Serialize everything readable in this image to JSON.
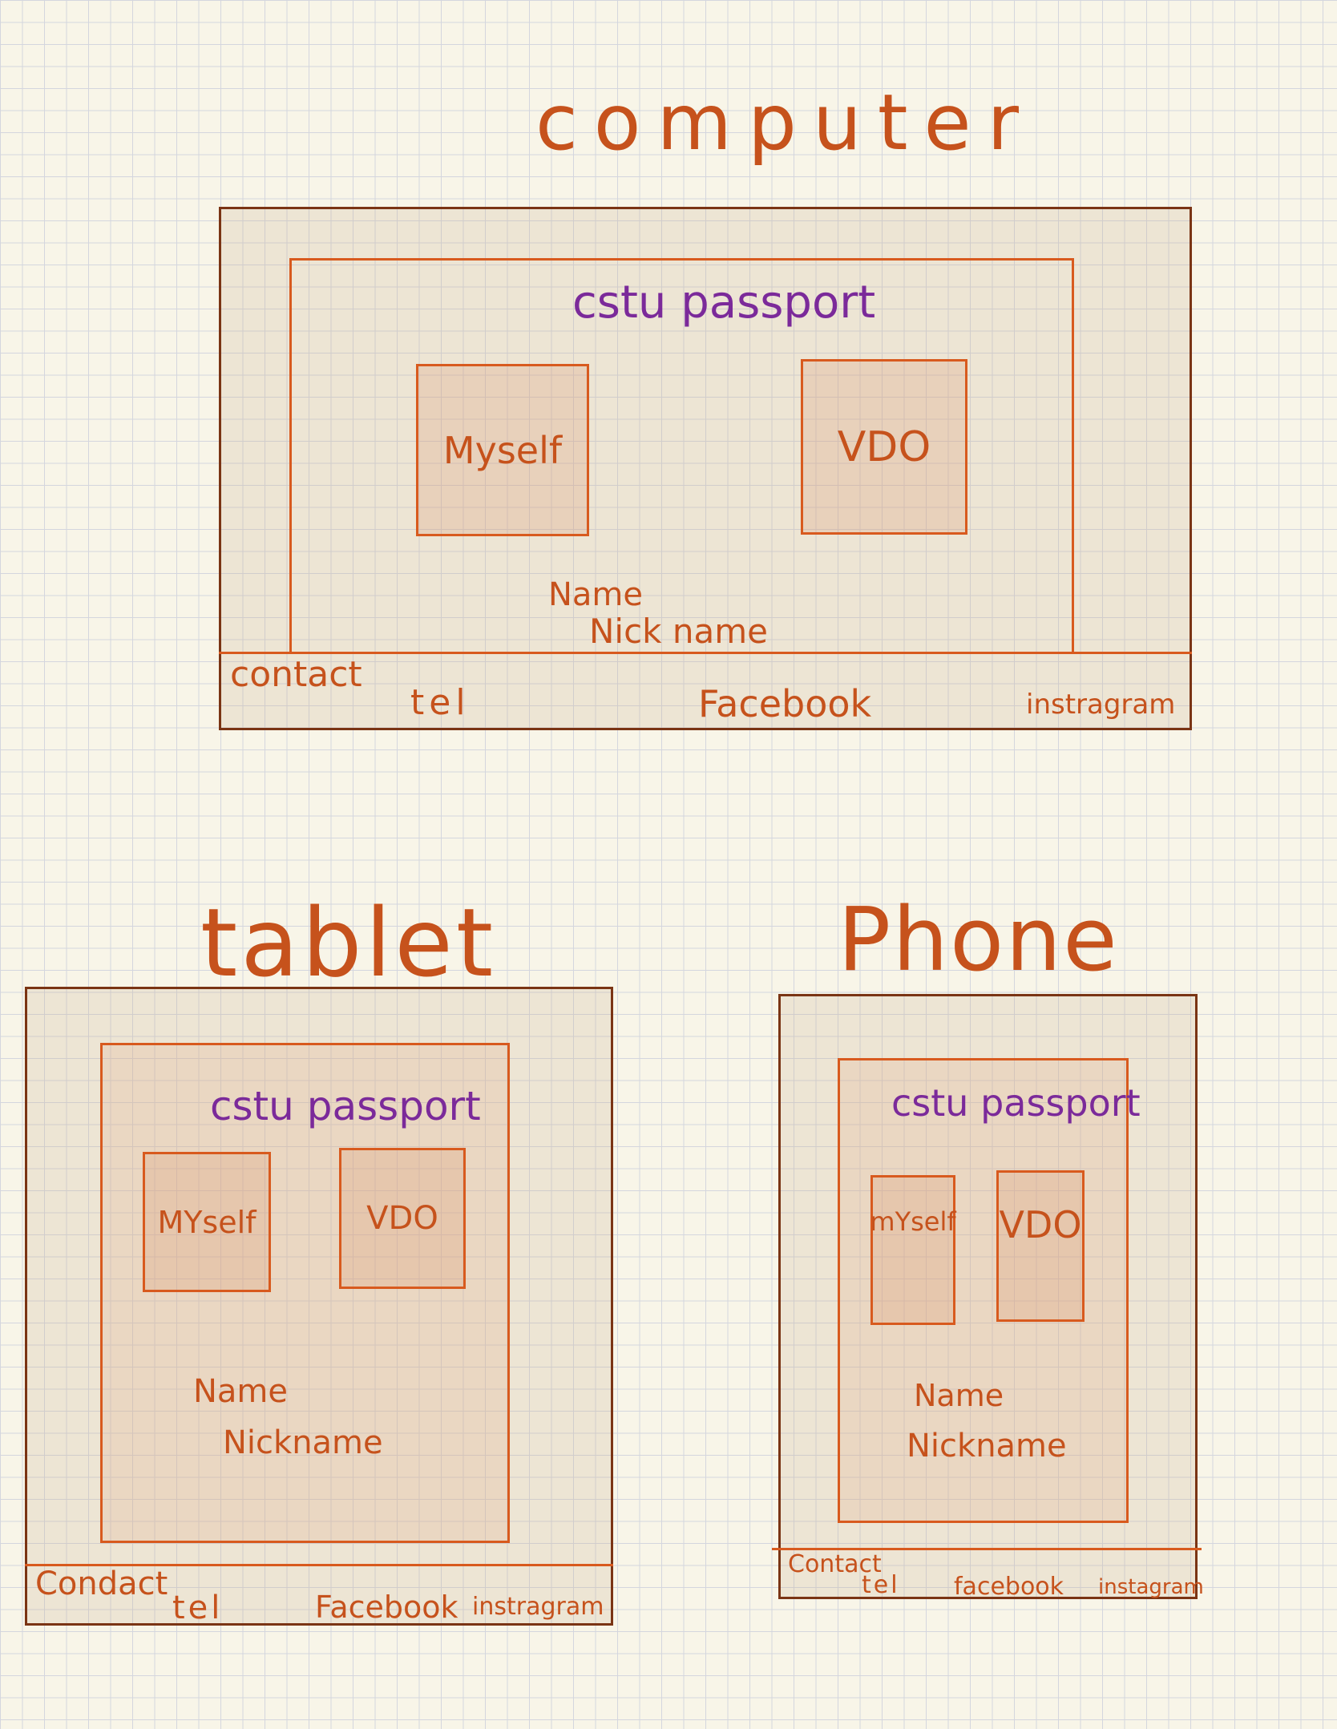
{
  "sections": {
    "computer": {
      "title": "computer",
      "header": "cstu passport",
      "box_left": "Myself",
      "box_right": "VDO",
      "name": "Name",
      "nickname": "Nick name",
      "footer": {
        "contact": "contact",
        "tel": "tel",
        "facebook": "Facebook",
        "instagram": "instragram"
      }
    },
    "tablet": {
      "title": "tablet",
      "header": "cstu passport",
      "box_left": "MYself",
      "box_right": "VDO",
      "name": "Name",
      "nickname": "Nickname",
      "footer": {
        "contact": "Condact",
        "tel": "tel",
        "facebook": "Facebook",
        "instagram": "instragram"
      }
    },
    "phone": {
      "title": "Phone",
      "header": "cstu passport",
      "box_left": "mYself",
      "box_right": "VDO",
      "name": "Name",
      "nickname": "Nickname",
      "footer": {
        "contact": "Contact",
        "tel": "tel",
        "facebook": "facebook",
        "instagram": "instagram"
      }
    }
  },
  "colors": {
    "background": "#f8f5e8",
    "grid": "#d4d6de",
    "outline_dark": "#7a3414",
    "outline": "#d85a1e",
    "text": "#c6521c",
    "accent_text": "#7b2a9a"
  }
}
